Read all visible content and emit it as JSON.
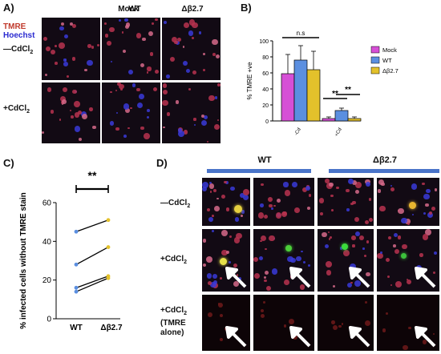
{
  "panelA": {
    "letter": "A)",
    "columns": [
      "Mock",
      "WT",
      "Δβ2.7"
    ],
    "stain_labels": {
      "tmre": "TMRE",
      "hoechst": "Hoechst"
    },
    "rows": [
      {
        "label_main": "—CdCl",
        "label_sub": "2"
      },
      {
        "label_main": "+CdCl",
        "label_sub": "2"
      }
    ],
    "colors": {
      "tmre": "#c0392b",
      "hoechst": "#2a2ad0"
    }
  },
  "panelB": {
    "letter": "B)"
  },
  "panelC": {
    "letter": "C)"
  },
  "panelD": {
    "letter": "D)",
    "columns": [
      "WT",
      "Δβ2.7"
    ],
    "rows": [
      {
        "label_main": "—CdCl",
        "label_sub": "2",
        "extra": ""
      },
      {
        "label_main": "+CdCl",
        "label_sub": "2",
        "extra": ""
      },
      {
        "label_main": "+CdCl",
        "label_sub": "2",
        "extra": "(TMRE alone)"
      }
    ],
    "header_bar_color": "#4a74c9"
  },
  "chart_data": [
    {
      "type": "bar",
      "panel": "B",
      "ylabel": "% TMRE +ve",
      "ylim": [
        0,
        100
      ],
      "yticks": [
        0,
        20,
        40,
        60,
        80,
        100
      ],
      "categories": [
        "-Cd",
        "+Cd"
      ],
      "series": [
        {
          "name": "Mock",
          "color": "#d64fd6",
          "values": [
            59,
            3
          ],
          "errors": [
            24,
            2
          ]
        },
        {
          "name": "WT",
          "color": "#5b8fe0",
          "values": [
            76,
            13
          ],
          "errors": [
            18,
            3
          ]
        },
        {
          "name": "Δβ2.7",
          "color": "#e3c12b",
          "values": [
            64,
            3
          ],
          "errors": [
            23,
            2
          ]
        }
      ],
      "annotations": [
        {
          "text": "n.s",
          "category": "-Cd",
          "between": [
            "Mock",
            "Δβ2.7"
          ],
          "y": 104
        },
        {
          "text": "**",
          "category": "+Cd",
          "between": [
            "Mock",
            "WT"
          ],
          "y": 28
        },
        {
          "text": "**",
          "category": "+Cd",
          "between": [
            "WT",
            "Δβ2.7"
          ],
          "y": 33
        }
      ],
      "legend_position": "top-right",
      "grid": false
    },
    {
      "type": "scatter",
      "panel": "C",
      "ylabel": "% infected cells without TMRE stain",
      "ylim": [
        0,
        60
      ],
      "yticks": [
        0,
        20,
        40,
        60
      ],
      "categories": [
        "WT",
        "Δβ2.7"
      ],
      "pairs": [
        [
          45,
          51
        ],
        [
          28,
          37
        ],
        [
          16,
          22
        ],
        [
          14,
          21
        ]
      ],
      "colors": {
        "left": "#5b8fe0",
        "right": "#e3c12b",
        "line": "#000000"
      },
      "significance": "**",
      "grid": false
    }
  ]
}
